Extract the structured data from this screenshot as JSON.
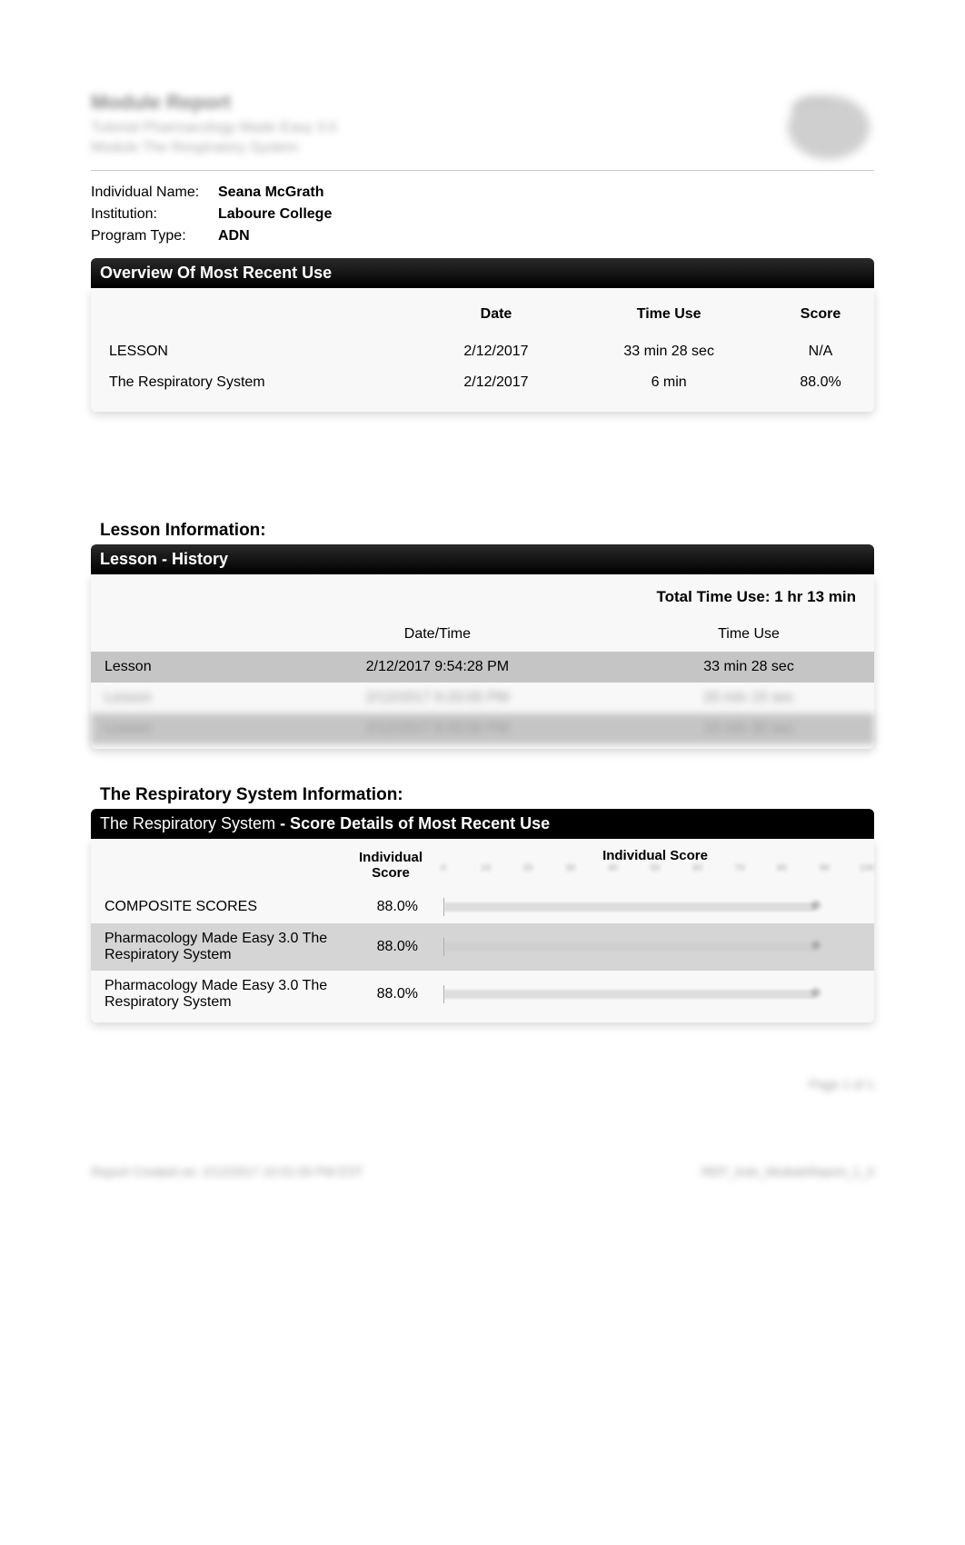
{
  "header": {
    "blurred_title": "Module Report",
    "blurred_sub1": "Tutorial   Pharmacology Made Easy 3.0",
    "blurred_sub2": "Module   The Respiratory System"
  },
  "info": {
    "individual_label": "Individual Name:",
    "individual_value": "Seana McGrath",
    "institution_label": "Institution:",
    "institution_value": "Laboure College",
    "program_label": "Program Type:",
    "program_value": "ADN"
  },
  "overview": {
    "title": "Overview Of Most Recent Use",
    "columns": {
      "date": "Date",
      "time_use": "Time Use",
      "score": "Score"
    },
    "rows": [
      {
        "name": "LESSON",
        "date": "2/12/2017",
        "time_use": "33 min 28 sec",
        "score": "N/A"
      },
      {
        "name": "The Respiratory System",
        "date": "2/12/2017",
        "time_use": "6 min",
        "score": "88.0%"
      }
    ]
  },
  "lesson_info": {
    "section_title": "Lesson Information:",
    "header": "Lesson - History",
    "total_time_label": "Total Time Use: 1 hr 13 min",
    "columns": {
      "datetime": "Date/Time",
      "time_use": "Time Use"
    },
    "rows": [
      {
        "name": "Lesson",
        "datetime": "2/12/2017 9:54:28 PM",
        "time_use": "33 min 28 sec",
        "shaded": true,
        "blurred": false
      },
      {
        "name": "Lesson",
        "datetime": "2/12/2017 9:20:00 PM",
        "time_use": "20 min 15 sec",
        "shaded": false,
        "blurred": true
      },
      {
        "name": "Lesson",
        "datetime": "2/12/2017 8:50:00 PM",
        "time_use": "19 min 30 sec",
        "shaded": true,
        "blurred": true
      }
    ]
  },
  "resp_info": {
    "section_title": "The Respiratory System Information:",
    "header_normal": "The Respiratory System ",
    "header_bold": "- Score Details of Most Recent Use",
    "columns": {
      "individual_score": "Individual Score",
      "chart_label": "Individual Score"
    },
    "chart": {
      "xlim": [
        0,
        100
      ],
      "tick_step": 10,
      "bar_color": "#cccccc",
      "grid_color": "#dddddd",
      "background_color": "#f8f8f8"
    },
    "rows": [
      {
        "name": "COMPOSITE SCORES",
        "score": "88.0%",
        "value": 88.0,
        "shaded": false
      },
      {
        "name": "Pharmacology Made Easy 3.0 The Respiratory System",
        "score": "88.0%",
        "value": 88.0,
        "shaded": true
      },
      {
        "name": "Pharmacology Made Easy 3.0 The Respiratory System",
        "score": "88.0%",
        "value": 88.0,
        "shaded": false
      }
    ]
  },
  "footer": {
    "page": "Page 1 of 1",
    "left": "Report Created on: 2/12/2017 10:01:00 PM EST",
    "right": "REP_Indv_ModuleReport_1_0"
  }
}
